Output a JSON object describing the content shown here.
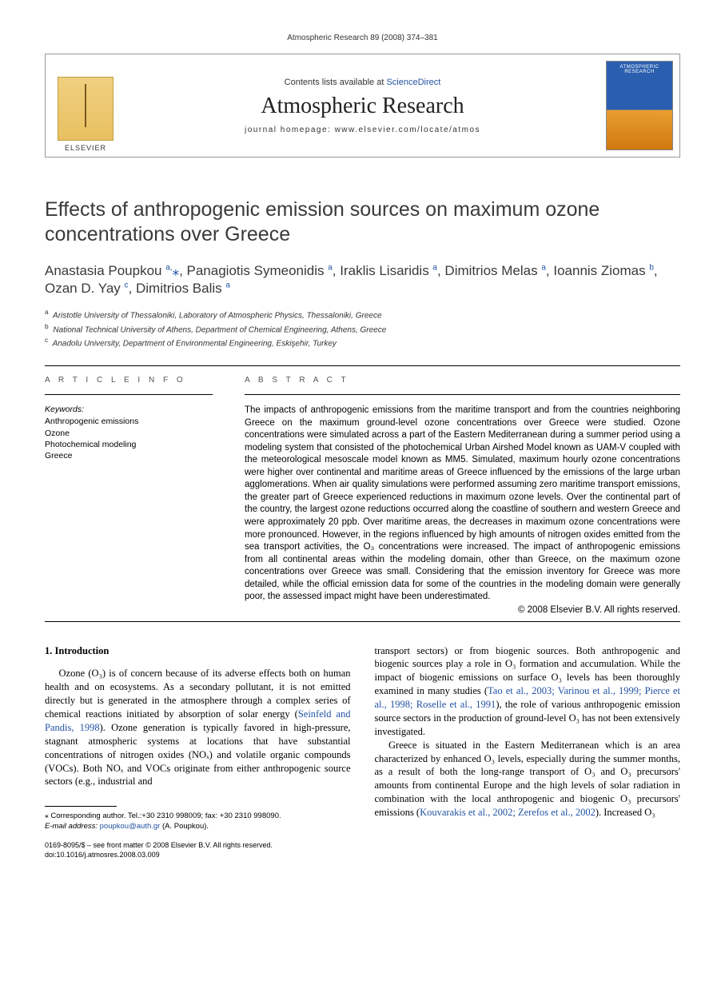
{
  "running_head": "Atmospheric Research 89 (2008) 374–381",
  "masthead": {
    "publisher_label": "ELSEVIER",
    "contents_prefix": "Contents lists available at ",
    "contents_link": "ScienceDirect",
    "journal_name": "Atmospheric Research",
    "homepage_label": "journal homepage: www.elsevier.com/locate/atmos",
    "cover_title": "ATMOSPHERIC RESEARCH"
  },
  "title": "Effects of anthropogenic emission sources on maximum ozone concentrations over Greece",
  "authors_html": "Anastasia Poupkou <sup>a,</sup><span class='star'>⁎</span>, Panagiotis Symeonidis <sup>a</sup>, Iraklis Lisaridis <sup>a</sup>, Dimitrios Melas <sup>a</sup>, Ioannis Ziomas <sup>b</sup>, Ozan D. Yay <sup>c</sup>, Dimitrios Balis <sup>a</sup>",
  "affiliations": [
    {
      "key": "a",
      "text": "Aristotle University of Thessaloniki, Laboratory of Atmospheric Physics, Thessaloniki, Greece"
    },
    {
      "key": "b",
      "text": "National Technical University of Athens, Department of Chemical Engineering, Athens, Greece"
    },
    {
      "key": "c",
      "text": "Anadolu University, Department of Environmental Engineering, Eskişehir, Turkey"
    }
  ],
  "article_info_heading": "A R T I C L E   I N F O",
  "abstract_heading": "A B S T R A C T",
  "keywords_label": "Keywords:",
  "keywords": [
    "Anthropogenic emissions",
    "Ozone",
    "Photochemical modeling",
    "Greece"
  ],
  "abstract": "The impacts of anthropogenic emissions from the maritime transport and from the countries neighboring Greece on the maximum ground-level ozone concentrations over Greece were studied. Ozone concentrations were simulated across a part of the Eastern Mediterranean during a summer period using a modeling system that consisted of the photochemical Urban Airshed Model known as UAM-V coupled with the meteorological mesoscale model known as MM5. Simulated, maximum hourly ozone concentrations were higher over continental and maritime areas of Greece influenced by the emissions of the large urban agglomerations. When air quality simulations were performed assuming zero maritime transport emissions, the greater part of Greece experienced reductions in maximum ozone levels. Over the continental part of the country, the largest ozone reductions occurred along the coastline of southern and western Greece and were approximately 20 ppb. Over maritime areas, the decreases in maximum ozone concentrations were more pronounced. However, in the regions influenced by high amounts of nitrogen oxides emitted from the sea transport activities, the O₃ concentrations were increased. The impact of anthropogenic emissions from all continental areas within the modeling domain, other than Greece, on the maximum ozone concentrations over Greece was small. Considering that the emission inventory for Greece was more detailed, while the official emission data for some of the countries in the modeling domain were generally poor, the assessed impact might have been underestimated.",
  "copyright": "© 2008 Elsevier B.V. All rights reserved.",
  "section1_heading": "1. Introduction",
  "col_left_p1": "Ozone (O₃) is of concern because of its adverse effects both on human health and on ecosystems. As a secondary pollutant, it is not emitted directly but is generated in the atmosphere through a complex series of chemical reactions initiated by absorption of solar energy (",
  "col_left_ref1": "Seinfeld and Pandis, 1998",
  "col_left_p1b": "). Ozone generation is typically favored in high-pressure, stagnant atmospheric systems at locations that have substantial concentrations of nitrogen oxides (NOₓ) and volatile organic compounds (VOCs). Both NOₓ and VOCs originate from either anthropogenic source sectors (e.g., industrial and",
  "col_right_p1": "transport sectors) or from biogenic sources. Both anthropogenic and biogenic sources play a role in O₃ formation and accumulation. While the impact of biogenic emissions on surface O₃ levels has been thoroughly examined in many studies (",
  "col_right_ref1": "Tao et al., 2003; Varinou et al., 1999; Pierce et al., 1998; Roselle et al., 1991",
  "col_right_p1b": "), the role of various anthropogenic emission source sectors in the production of ground-level O₃ has not been extensively investigated.",
  "col_right_p2a": "Greece is situated in the Eastern Mediterranean which is an area characterized by enhanced O₃ levels, especially during the summer months, as a result of both the long-range transport of O₃ and O₃ precursors' amounts from continental Europe and the high levels of solar radiation in combination with the local anthropogenic and biogenic O₃ precursors' emissions (",
  "col_right_ref2": "Kouvarakis et al., 2002; Zerefos et al., 2002",
  "col_right_p2b": "). Increased O₃",
  "footnote_corr": "⁎ Corresponding author. Tel.:+30 2310 998009; fax: +30 2310 998090.",
  "footnote_email_label": "E-mail address:",
  "footnote_email": "poupkou@auth.gr",
  "footnote_email_tail": "(A. Poupkou).",
  "bottom_line1": "0169-8095/$ – see front matter © 2008 Elsevier B.V. All rights reserved.",
  "bottom_doi": "doi:10.1016/j.atmosres.2008.03.009"
}
